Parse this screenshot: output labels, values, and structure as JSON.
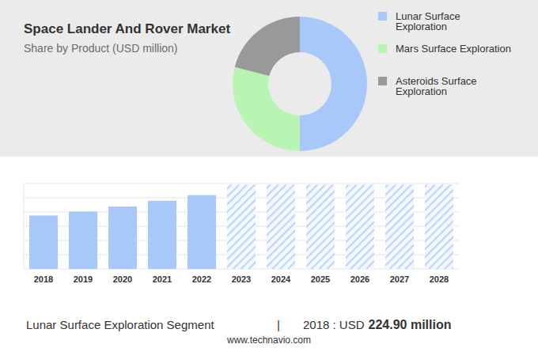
{
  "chart_data": [
    {
      "type": "donut",
      "title": "Space Lander And Rover Market",
      "subtitle": "Share by Product (USD million)",
      "categories": [
        "Lunar Surface Exploration",
        "Mars Surface Exploration",
        "Asteroids Surface Exploration"
      ],
      "values": [
        50,
        29,
        21
      ],
      "colors": [
        "#a9c8fa",
        "#b8f5b3",
        "#999999"
      ],
      "legend": "right"
    },
    {
      "type": "bar",
      "categories": [
        "2018",
        "2019",
        "2020",
        "2021",
        "2022",
        "2023",
        "2024",
        "2025",
        "2026",
        "2027",
        "2028"
      ],
      "series": [
        {
          "color": "#a9c8fa",
          "values": [
            224.9,
            242,
            263,
            287,
            311,
            null,
            null,
            null,
            null,
            null,
            null
          ]
        },
        {
          "color": "#a9c8fa",
          "line_style": "hatched",
          "values": [
            null,
            null,
            null,
            null,
            null,
            355,
            355,
            355,
            355,
            355,
            355
          ]
        }
      ],
      "stacked": true,
      "ylim": [
        0,
        360
      ],
      "yticks": [
        0,
        60,
        120,
        180,
        240,
        300,
        360
      ],
      "grid": true,
      "tick_labels": "x",
      "annotations": [
        "Lunar Surface Exploration Segment",
        "|",
        "2018 : USD",
        "224.90 million"
      ],
      "source": "www.technavio.com"
    }
  ]
}
